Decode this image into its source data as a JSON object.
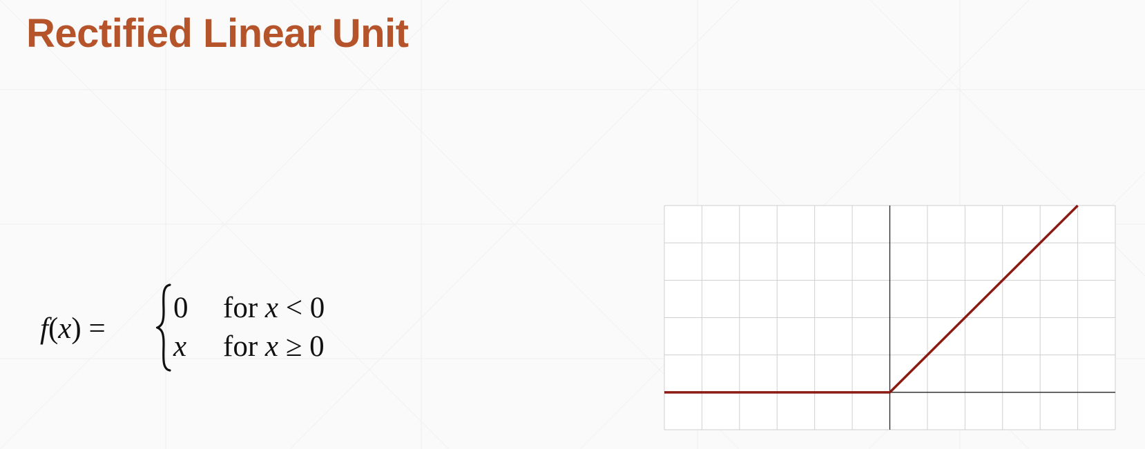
{
  "slide": {
    "title": "Rectified Linear Unit",
    "title_color": "#b5532a"
  },
  "formula": {
    "lhs": "f(x) =",
    "cases": [
      {
        "value": "0",
        "condition": "for x < 0"
      },
      {
        "value": "x",
        "condition": "for x ≥ 0"
      }
    ]
  },
  "chart_data": {
    "type": "line",
    "title": "",
    "xlabel": "",
    "ylabel": "",
    "xlim": [
      -6,
      6
    ],
    "ylim": [
      -1,
      5
    ],
    "grid": true,
    "series": [
      {
        "x": [
          -6,
          0,
          5
        ],
        "y": [
          0,
          0,
          5
        ],
        "color": "#8b1a12"
      }
    ]
  }
}
